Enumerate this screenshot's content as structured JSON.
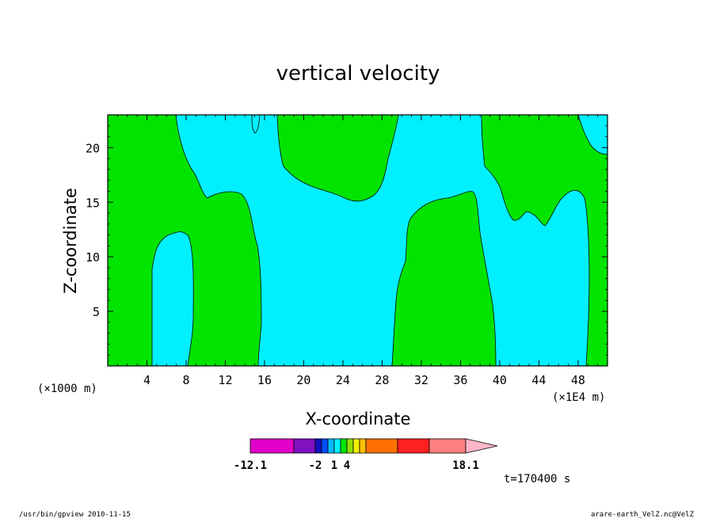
{
  "chart_data": {
    "type": "heatmap",
    "title": "vertical velocity",
    "xlabel": "X-coordinate",
    "ylabel": "Z-coordinate",
    "x_unit_left": "(×1000 m)",
    "x_unit_right": "(×1E4 m)",
    "xlim": [
      0,
      51
    ],
    "ylim": [
      0,
      23
    ],
    "xticks": [
      4,
      8,
      12,
      16,
      20,
      24,
      28,
      32,
      36,
      40,
      44,
      48
    ],
    "yticks": [
      5,
      10,
      15,
      20
    ],
    "regions": [
      {
        "fill_level": "-2..1",
        "color": "#00f0ff",
        "label": "background"
      },
      {
        "fill_level": "1..4",
        "color": "#00e400",
        "label": "band-west"
      },
      {
        "fill_level": "1..4",
        "color": "#00e400",
        "label": "band-upper-center"
      },
      {
        "fill_level": "1..4",
        "color": "#00e400",
        "label": "band-center"
      },
      {
        "fill_level": "1..4",
        "color": "#00e400",
        "label": "band-east"
      }
    ],
    "colorbar": {
      "colors": [
        "#e000c8",
        "#8010c0",
        "#1010c0",
        "#0050ff",
        "#00b8ff",
        "#00f0ff",
        "#00e400",
        "#90e000",
        "#f0f000",
        "#ffc000",
        "#ff7000",
        "#ff2020",
        "#ff8080",
        "#ffb8c8"
      ],
      "labels": [
        "-12.1",
        "-2",
        "1",
        "4",
        "18.1"
      ]
    },
    "time_label": "t=170400 s"
  },
  "footer": {
    "left": "/usr/bin/gpview   2010-11-15",
    "right": "arare-earth_VelZ.nc@VelZ"
  }
}
